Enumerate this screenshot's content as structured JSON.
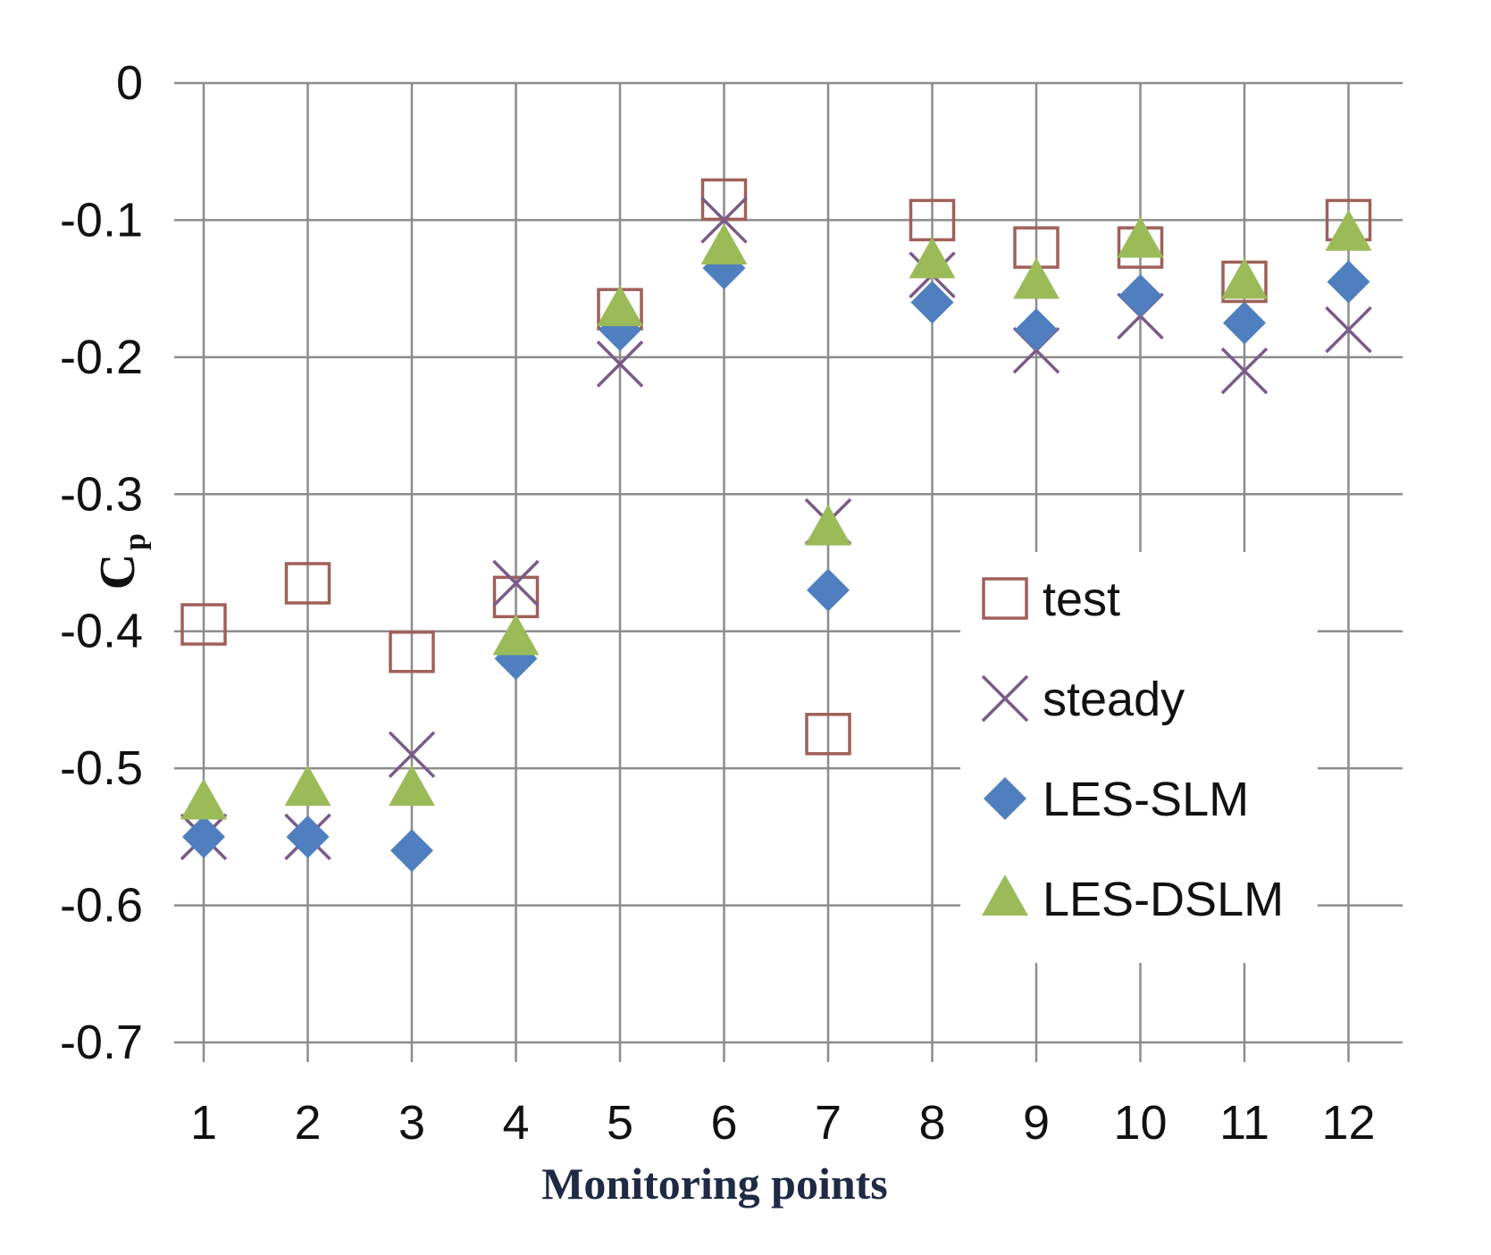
{
  "chart_data": {
    "type": "scatter",
    "title": "",
    "xlabel": "Monitoring points",
    "ylabel": "C",
    "ylabel_subscript": "p",
    "x": [
      "1",
      "2",
      "3",
      "4",
      "5",
      "6",
      "7",
      "8",
      "9",
      "10",
      "11",
      "12"
    ],
    "ylim": [
      -0.7,
      0
    ],
    "yticks": [
      "0",
      "-0.1",
      "-0.2",
      "-0.3",
      "-0.4",
      "-0.5",
      "-0.6",
      "-0.7"
    ],
    "ytick_values": [
      0,
      -0.1,
      -0.2,
      -0.3,
      -0.4,
      -0.5,
      -0.6,
      -0.7
    ],
    "grid": true,
    "legend_position": "right-middle",
    "series": [
      {
        "name": "test",
        "marker": "open-square",
        "color": "#a0605a",
        "values": [
          -0.395,
          -0.365,
          -0.415,
          -0.375,
          -0.165,
          -0.085,
          -0.475,
          -0.1,
          -0.12,
          -0.12,
          -0.145,
          -0.1
        ]
      },
      {
        "name": "steady",
        "marker": "x",
        "color": "#7a5a88",
        "values": [
          -0.55,
          -0.55,
          -0.49,
          -0.365,
          -0.205,
          -0.1,
          -0.32,
          -0.14,
          -0.195,
          -0.17,
          -0.21,
          -0.18
        ]
      },
      {
        "name": "LES-SLM",
        "marker": "diamond",
        "color": "#4f7fbf",
        "values": [
          -0.55,
          -0.55,
          -0.56,
          -0.42,
          -0.18,
          -0.135,
          -0.37,
          -0.16,
          -0.18,
          -0.155,
          -0.175,
          -0.145
        ]
      },
      {
        "name": "LES-DSLM",
        "marker": "triangle",
        "color": "#9bbb59",
        "values": [
          -0.525,
          -0.515,
          -0.515,
          -0.405,
          -0.165,
          -0.12,
          -0.325,
          -0.13,
          -0.145,
          -0.115,
          -0.145,
          -0.11
        ]
      }
    ]
  }
}
